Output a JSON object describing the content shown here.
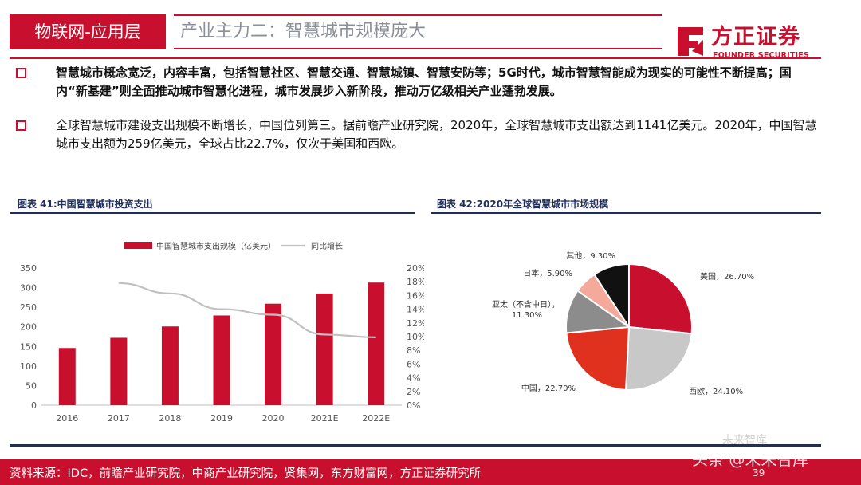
{
  "header": {
    "section_tag": "物联网-应用层",
    "title": "产业主力二：智慧城市规模庞大"
  },
  "logo": {
    "name_cn": "方正证券",
    "name_en": "FOUNDER SECURITIES"
  },
  "bullets": [
    "智慧城市概念宽泛，内容丰富，包括智慧社区、智慧交通、智慧城镇、智慧安防等；5G时代，城市智慧智能成为现实的可能性不断提高；国内“新基建”则全面推动城市智慧化进程，城市发展步入新阶段，推动万亿级相关产业蓬勃发展。",
    "全球智慧城市建设支出规模不断增长，中国位列第三。据前瞻产业研究院，2020年，全球智慧城市支出额达到1141亿美元。2020年，中国智慧城市支出额为259亿美元，全球占比22.7%，仅次于美国和西欧。"
  ],
  "figures": {
    "fig1_caption": "图表 41:中国智慧城市投资支出",
    "fig2_caption": "图表 42:2020年全球智慧城市市场规模"
  },
  "chart_data": [
    {
      "type": "bar",
      "categories": [
        "2016",
        "2017",
        "2018",
        "2019",
        "2020",
        "2021E",
        "2022E"
      ],
      "series": [
        {
          "name": "中国智慧城市支出规模（亿美元）",
          "type": "bar",
          "axis": "left",
          "values": [
            146,
            172,
            201,
            229,
            259,
            285,
            313
          ]
        },
        {
          "name": "同比增长",
          "type": "line",
          "axis": "right",
          "values": [
            null,
            17.8,
            16.3,
            14.0,
            13.2,
            10.3,
            9.9
          ]
        }
      ],
      "ylim_left": [
        0,
        350
      ],
      "yticks_left": [
        "0",
        "50",
        "100",
        "150",
        "200",
        "250",
        "300",
        "350"
      ],
      "ylim_right": [
        0,
        20
      ],
      "yticks_right": [
        "0%",
        "2%",
        "4%",
        "6%",
        "8%",
        "10%",
        "12%",
        "14%",
        "16%",
        "18%",
        "20%"
      ],
      "colors": {
        "bar": "#c8102e",
        "line": "#c0c0c0"
      },
      "legend_position": "top"
    },
    {
      "type": "pie",
      "labels": [
        "美国",
        "西欧",
        "中国",
        "亚太（不含中日）",
        "日本",
        "其他"
      ],
      "values": [
        26.7,
        24.1,
        22.7,
        11.3,
        5.9,
        9.3
      ],
      "display_labels": [
        "美国，26.70%",
        "西欧，24.10%",
        "中国，22.70%",
        "亚太（不含中日），11.30%",
        "日本，5.90%",
        "其他，9.30%"
      ],
      "colors": [
        "#c8102e",
        "#c8c8c8",
        "#e0301e",
        "#8c8c8c",
        "#f4a99a",
        "#111111"
      ]
    }
  ],
  "footer": {
    "source": "资料来源：IDC，前瞻产业研究院，中商产业研究院，贤集网，东方财富网，方正证券研究所",
    "page": "39",
    "watermark": "头条 @未来智库",
    "watermark2": "未来智库"
  }
}
